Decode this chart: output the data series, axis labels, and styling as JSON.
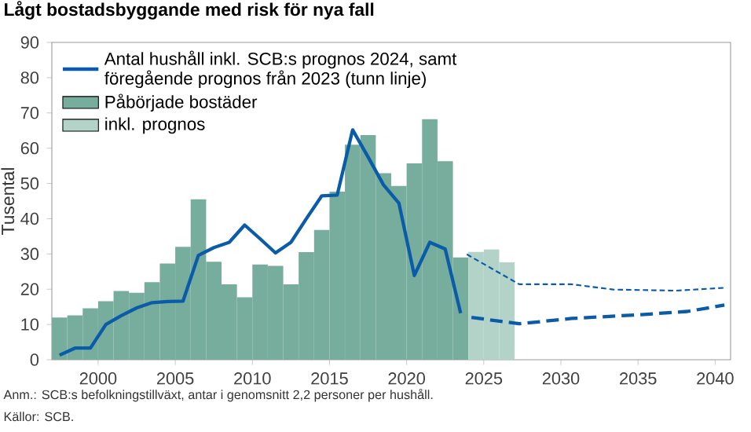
{
  "chart_data": {
    "type": "bar",
    "title": "Lågt bostadsbyggande med risk för nya fall",
    "ylabel": "Tusental",
    "xlim": [
      1997,
      2041
    ],
    "ylim": [
      0,
      90
    ],
    "xticks": [
      2000,
      2005,
      2010,
      2015,
      2020,
      2025,
      2030,
      2035,
      2040
    ],
    "yticks": [
      0,
      10,
      20,
      30,
      40,
      50,
      60,
      70,
      80,
      90
    ],
    "legend": "top left",
    "series": [
      {
        "type": "line",
        "name": "Antal hushåll inkl. SCB:s prognos 2024, samt föregående prognos från 2023 (tunn linje)",
        "color": "#0a5ca8",
        "line_style": "solid",
        "x": [
          1997.5,
          1998.5,
          1999.5,
          2000.5,
          2001.5,
          2002.5,
          2003.5,
          2004.5,
          2005.5,
          2006.5,
          2007.5,
          2008.5,
          2009.5,
          2010.5,
          2011.5,
          2012.5,
          2013.5,
          2014.5,
          2015.5,
          2016.5,
          2017.5,
          2018.5,
          2019.5,
          2020.5,
          2021.5,
          2022.5,
          2023.5
        ],
        "values": [
          1.3,
          3.3,
          3.3,
          10,
          12.5,
          14.7,
          16.2,
          16.5,
          16.6,
          29.6,
          31.8,
          33.3,
          38.2,
          34.3,
          30.3,
          33.3,
          40,
          46.5,
          46.7,
          65.2,
          57.5,
          49.6,
          44.4,
          23.9,
          33.3,
          31.4,
          13.2
        ]
      },
      {
        "name": "Påbörjade bostäder",
        "color": "#77ad9c",
        "x": [
          1997.5,
          1998.5,
          1999.5,
          2000.5,
          2001.5,
          2002.5,
          2003.5,
          2004.5,
          2005.5,
          2006.5,
          2007.5,
          2008.5,
          2009.5,
          2010.5,
          2011.5,
          2012.5,
          2013.5,
          2014.5,
          2015.5,
          2016.5,
          2017.5,
          2018.5,
          2019.5,
          2020.5,
          2021.5,
          2022.5,
          2023.5
        ],
        "values": [
          12,
          12.6,
          14.6,
          16.6,
          19.5,
          19,
          22,
          27.3,
          32,
          45.5,
          27.8,
          21.4,
          17.7,
          27,
          26.6,
          21.4,
          30.5,
          36.8,
          47.7,
          61,
          63.7,
          52.9,
          49.3,
          55.7,
          68.2,
          56.3,
          29
        ]
      },
      {
        "name": "inkl. prognos",
        "color": "#b3d3c8",
        "x": [
          2024.5,
          2025.5,
          2026.5
        ],
        "values": [
          30.6,
          31.3,
          27.6
        ]
      },
      {
        "type": "line",
        "color": "#0a5ca8",
        "line_style": "dashed",
        "x": [
          2024.2,
          2027.3,
          2030.7,
          2035.2,
          2038.2,
          2040.6
        ],
        "values": [
          12,
          10.2,
          11.7,
          12.8,
          13.7,
          15.5
        ]
      },
      {
        "type": "line",
        "color": "#0a5ca8",
        "line_style": "dotted",
        "x": [
          2023.9,
          2027.3,
          2030.7,
          2033.4,
          2037.5,
          2040.6
        ],
        "values": [
          29.9,
          21.4,
          21.4,
          19.9,
          19.6,
          20.4
        ]
      }
    ],
    "annotations": [
      "Anm.: SCB:s befolkningstillväxt, antar i genomsnitt 2,2 personer per hushåll.",
      "Källor: SCB."
    ]
  }
}
